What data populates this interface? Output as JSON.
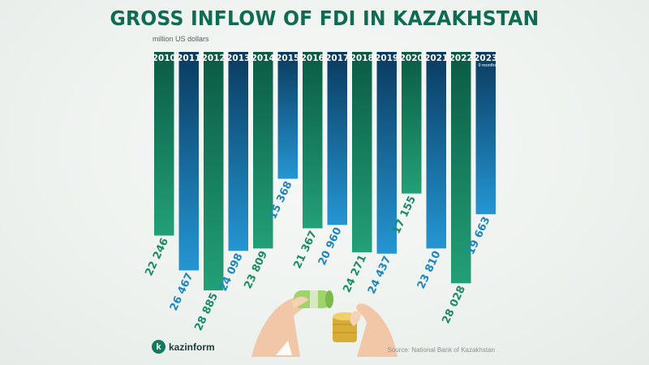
{
  "title": "GROSS INFLOW OF FDI IN KAZAKHSTAN",
  "unit_label": "million US dollars",
  "source": "Source: National Bank of Kazakhstan",
  "brand": {
    "logo_letter": "k",
    "name": "kazinform"
  },
  "colors": {
    "title": "#106b53",
    "green_series": "#1a8c66",
    "blue_series": "#1c86c2"
  },
  "chart_data": {
    "type": "bar",
    "title": "GROSS INFLOW OF FDI IN KAZAKHSTAN",
    "ylabel": "million US dollars",
    "categories": [
      "2010",
      "2011",
      "2012",
      "2013",
      "2014",
      "2015",
      "2016",
      "2017",
      "2018",
      "2019",
      "2020",
      "2021",
      "2022",
      "2023"
    ],
    "values": [
      22246,
      26467,
      28885,
      24098,
      23809,
      15368,
      21367,
      20960,
      24271,
      24437,
      17155,
      23810,
      28028,
      19663
    ],
    "value_labels": [
      "22 246",
      "26 467",
      "28 885",
      "24 098",
      "23 809",
      "15 368",
      "21 367",
      "20 960",
      "24 271",
      "24 437",
      "17 155",
      "23 810",
      "28 028",
      "19 663"
    ],
    "bar_colors": [
      "green",
      "blue",
      "green",
      "blue",
      "green",
      "blue",
      "green",
      "blue",
      "green",
      "blue",
      "green",
      "blue",
      "green",
      "blue"
    ],
    "notes": {
      "2023": "9 months"
    },
    "ylim": [
      0,
      28885
    ],
    "grid": false,
    "legend": "none"
  }
}
